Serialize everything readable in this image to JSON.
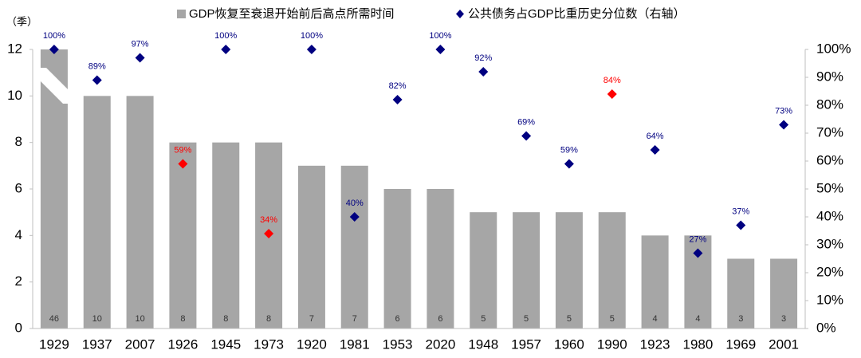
{
  "chart_data": {
    "type": "bar",
    "y_unit_label": "（季）",
    "categories": [
      "1929",
      "1937",
      "2007",
      "1926",
      "1945",
      "1973",
      "1920",
      "1981",
      "1953",
      "2020",
      "1948",
      "1957",
      "1960",
      "1990",
      "1923",
      "1980",
      "1969",
      "2001"
    ],
    "series": [
      {
        "name": "GDP恢复至衰退开始前后高点所需时间",
        "type": "bar",
        "color": "#a6a6a6",
        "values": [
          46,
          10,
          10,
          8,
          8,
          8,
          7,
          7,
          6,
          6,
          5,
          5,
          5,
          5,
          4,
          4,
          3,
          3
        ]
      },
      {
        "name": "公共债务占GDP比重历史分位数（右轴）",
        "type": "scatter",
        "axis": "y2",
        "color": "#000080",
        "colors": [
          "#000080",
          "#000080",
          "#000080",
          "#ff0000",
          "#000080",
          "#ff0000",
          "#000080",
          "#000080",
          "#000080",
          "#000080",
          "#000080",
          "#000080",
          "#000080",
          "#ff0000",
          "#000080",
          "#000080",
          "#000080",
          "#000080"
        ],
        "values": [
          100,
          89,
          97,
          59,
          100,
          34,
          100,
          40,
          82,
          100,
          92,
          69,
          59,
          84,
          64,
          27,
          37,
          73
        ],
        "value_labels": [
          "100%",
          "89%",
          "97%",
          "59%",
          "100%",
          "34%",
          "100%",
          "40%",
          "82%",
          "100%",
          "92%",
          "69%",
          "59%",
          "84%",
          "64%",
          "27%",
          "37%",
          "73%"
        ]
      }
    ],
    "ylim": [
      0,
      12
    ],
    "yticks": [
      0,
      2,
      4,
      6,
      8,
      10,
      12
    ],
    "y2lim": [
      0,
      100
    ],
    "y2ticks": [
      {
        "value": 0,
        "label": "0%"
      },
      {
        "value": 10,
        "label": "10%"
      },
      {
        "value": 20,
        "label": "20%"
      },
      {
        "value": 30,
        "label": "30%"
      },
      {
        "value": 40,
        "label": "40%"
      },
      {
        "value": 50,
        "label": "50%"
      },
      {
        "value": 60,
        "label": "60%"
      },
      {
        "value": 70,
        "label": "70%"
      },
      {
        "value": 80,
        "label": "80%"
      },
      {
        "value": 90,
        "label": "90%"
      },
      {
        "value": 100,
        "label": "100%"
      }
    ],
    "legend": "top"
  }
}
